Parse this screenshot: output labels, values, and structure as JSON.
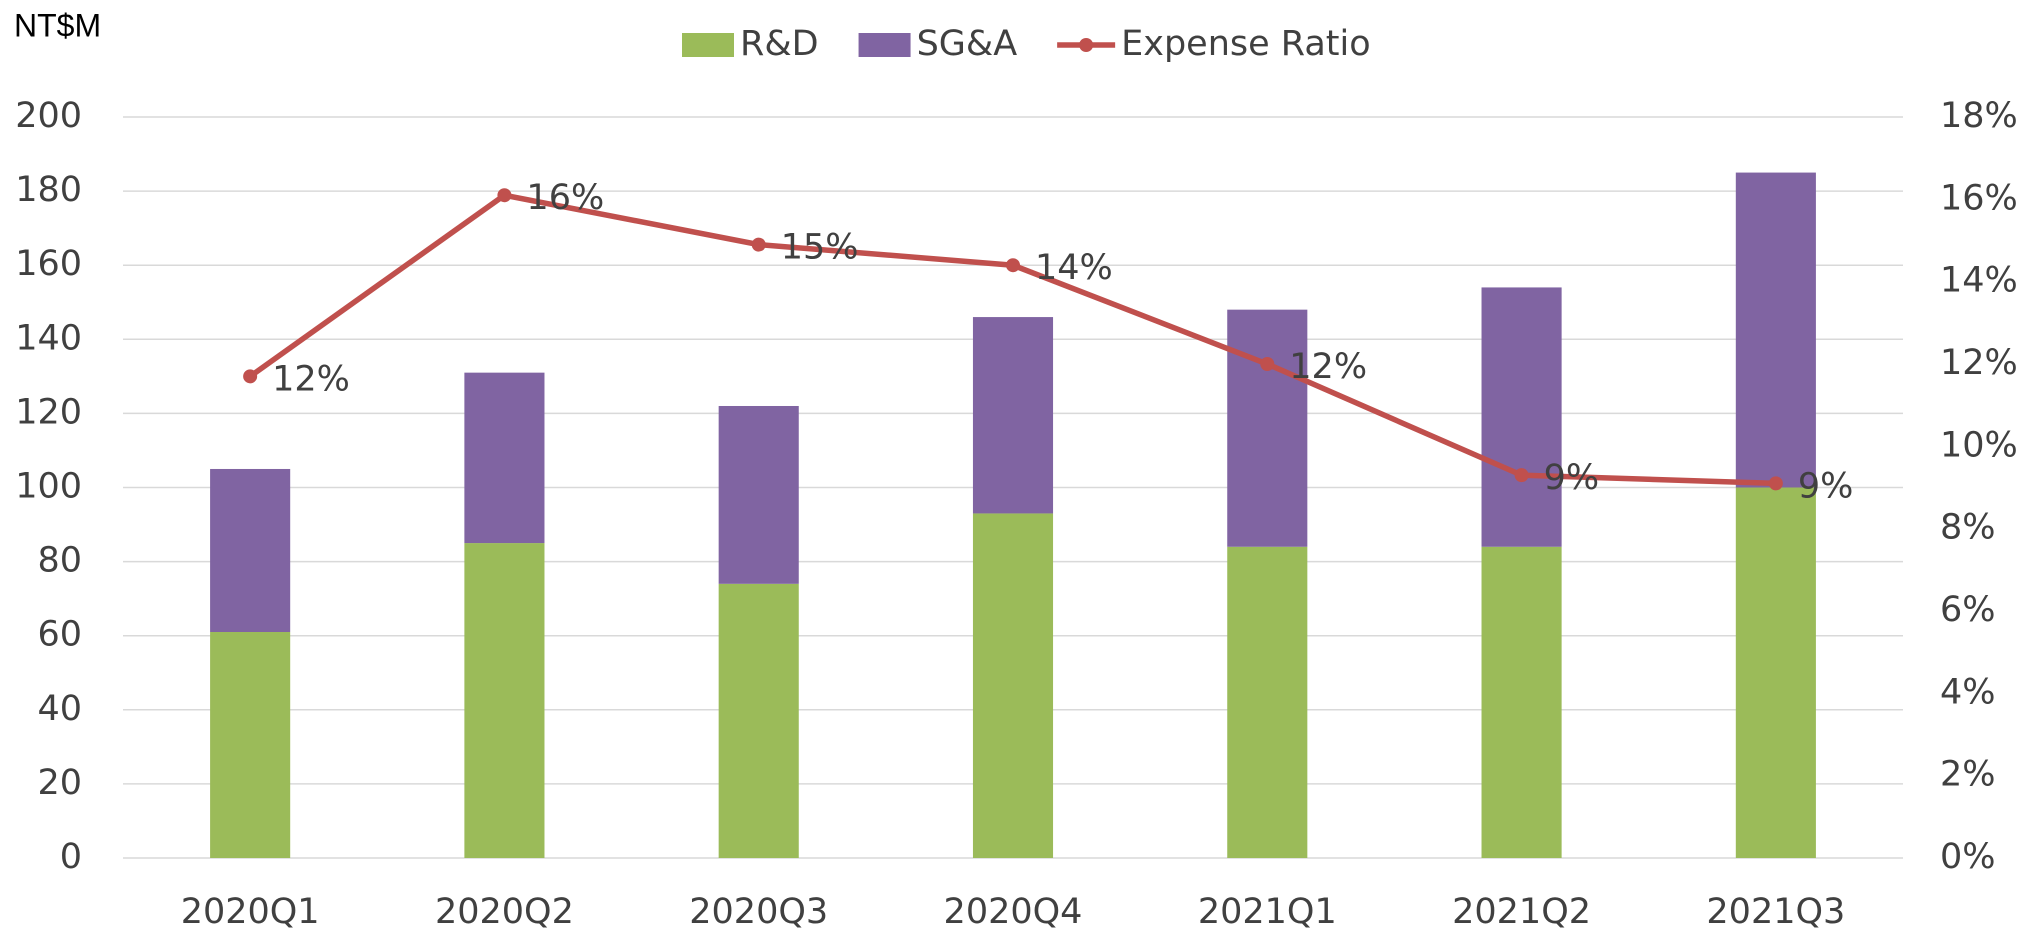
{
  "chart_data": {
    "type": "bar-line",
    "y_label": "NT$M",
    "categories": [
      "2020Q1",
      "2020Q2",
      "2020Q3",
      "2020Q4",
      "2021Q1",
      "2021Q2",
      "2021Q3"
    ],
    "series": [
      {
        "name": "R&D",
        "color": "#9bbb59",
        "type": "bar",
        "values": [
          61,
          85,
          74,
          93,
          84,
          84,
          100
        ]
      },
      {
        "name": "SG&A",
        "color": "#8064a2",
        "type": "bar",
        "values": [
          44,
          46,
          48,
          53,
          64,
          70,
          85
        ]
      },
      {
        "name": "Expense Ratio",
        "color": "#c0504d",
        "type": "line",
        "axis": "y2",
        "values": [
          11.7,
          16.1,
          14.9,
          14.4,
          12.0,
          9.3,
          9.1
        ],
        "value_labels": [
          "12%",
          "16%",
          "15%",
          "14%",
          "12%",
          "9%",
          "9%"
        ]
      }
    ],
    "ylim": [
      0,
      200
    ],
    "yticks": [
      0,
      20,
      40,
      60,
      80,
      100,
      120,
      140,
      160,
      180,
      200
    ],
    "y2lim": [
      0,
      18
    ],
    "y2ticks": [
      {
        "value": 0,
        "label": "0%"
      },
      {
        "value": 2,
        "label": "2%"
      },
      {
        "value": 4,
        "label": "4%"
      },
      {
        "value": 6,
        "label": "6%"
      },
      {
        "value": 8,
        "label": "8%"
      },
      {
        "value": 10,
        "label": "10%"
      },
      {
        "value": 12,
        "label": "12%"
      },
      {
        "value": 14,
        "label": "14%"
      },
      {
        "value": 16,
        "label": "16%"
      },
      {
        "value": 18,
        "label": "18%"
      }
    ],
    "grid": true,
    "legend": "top"
  }
}
